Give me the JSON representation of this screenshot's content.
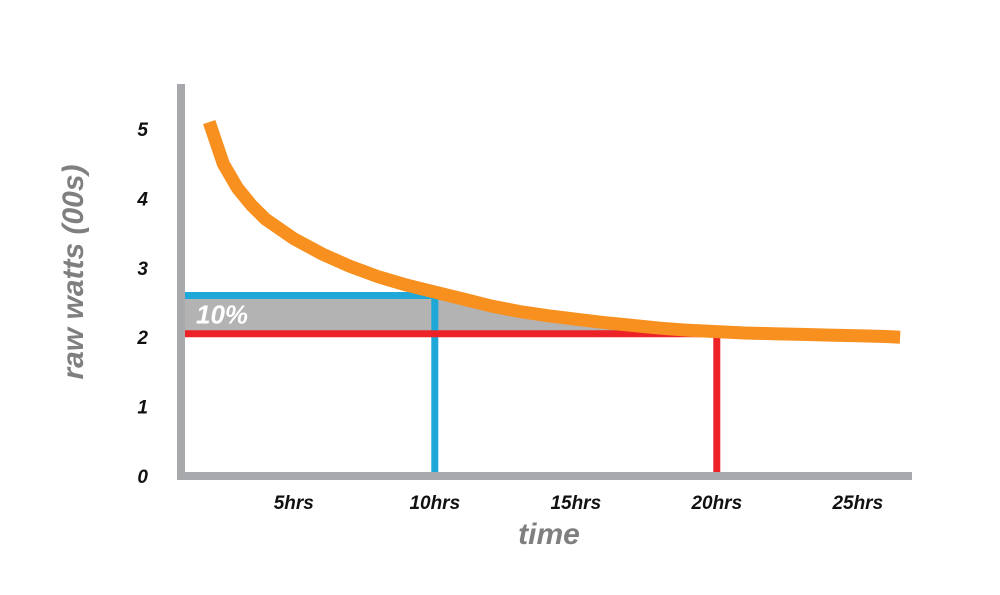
{
  "chart_data": {
    "type": "line",
    "title": "",
    "xlabel": "time",
    "ylabel": "raw watts (00s)",
    "x_tick_labels": [
      "5hrs",
      "10hrs",
      "15hrs",
      "20hrs",
      "25hrs"
    ],
    "x_tick_values": [
      5,
      10,
      15,
      20,
      25
    ],
    "y_tick_labels": [
      "0",
      "1",
      "2",
      "3",
      "4",
      "5"
    ],
    "y_tick_values": [
      0,
      1,
      2,
      3,
      4,
      5
    ],
    "xlim": [
      1,
      27
    ],
    "ylim": [
      0,
      5.5
    ],
    "grid": false,
    "series": [
      {
        "color": "#F7901E",
        "x": [
          2,
          2.5,
          3,
          3.5,
          4,
          5,
          6,
          7,
          8,
          9,
          10,
          11,
          12,
          13,
          14,
          15,
          16,
          17,
          18,
          19,
          20,
          21,
          22,
          23,
          24,
          25,
          26,
          26.5
        ],
        "y": [
          5.1,
          4.5,
          4.15,
          3.9,
          3.7,
          3.42,
          3.2,
          3.02,
          2.87,
          2.75,
          2.65,
          2.55,
          2.45,
          2.37,
          2.31,
          2.26,
          2.21,
          2.17,
          2.13,
          2.1,
          2.08,
          2.06,
          2.05,
          2.04,
          2.03,
          2.02,
          2.01,
          2.0
        ]
      }
    ],
    "annotations": {
      "band_label": "10%",
      "band_color": "#B3B3B3",
      "upper_line": {
        "y": 2.6,
        "x_end": 10,
        "color": "#1DA8D8"
      },
      "lower_line": {
        "y": 2.05,
        "x_end": 20,
        "color": "#EC2227"
      }
    },
    "axis_color": "#A7A9AC"
  }
}
